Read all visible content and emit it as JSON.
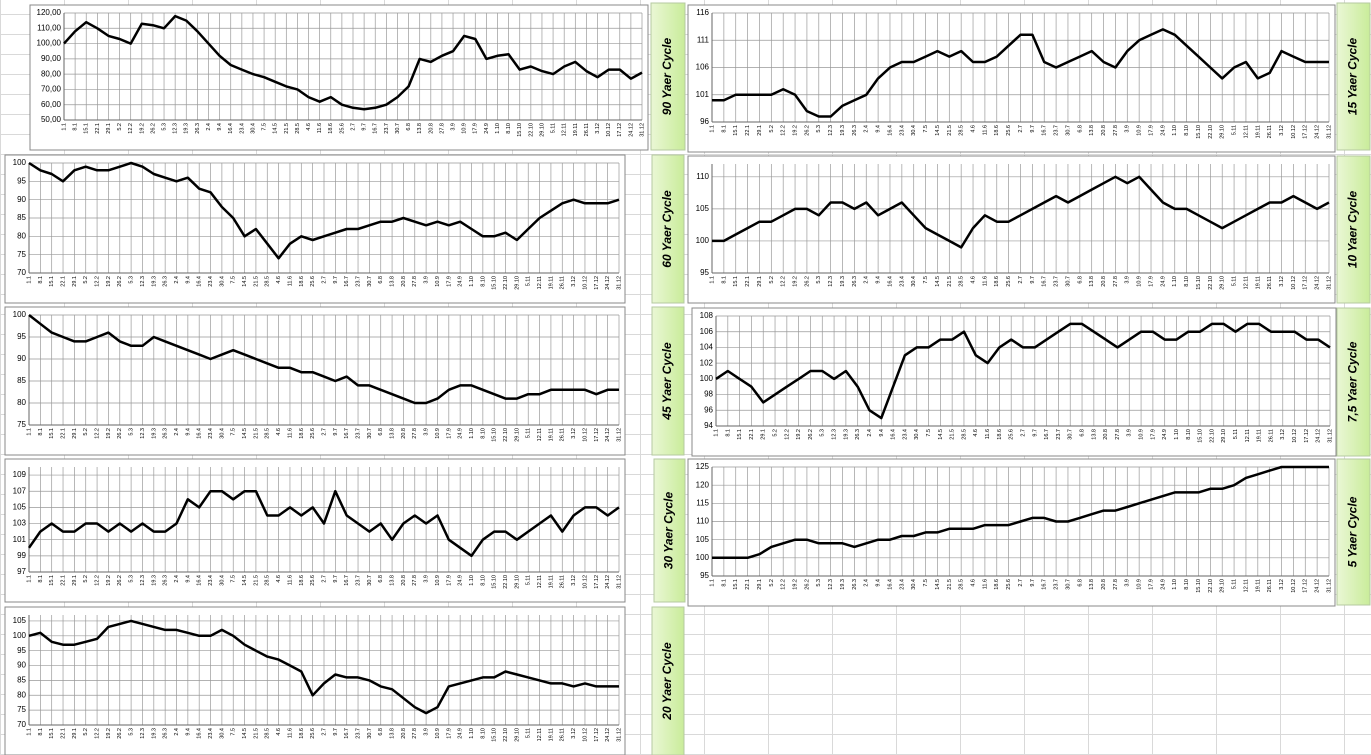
{
  "chart_data": [
    {
      "type": "line",
      "title": "90 Yaer Cycle",
      "color": "#000000",
      "grid": true,
      "ylim": [
        50,
        120
      ],
      "yticks": [
        {
          "value": 50,
          "label": "50,00"
        },
        {
          "value": 60,
          "label": "60,00"
        },
        {
          "value": 70,
          "label": "70,00"
        },
        {
          "value": 80,
          "label": "80,00"
        },
        {
          "value": 90,
          "label": "90,00"
        },
        {
          "value": 100,
          "label": "100,00"
        },
        {
          "value": 110,
          "label": "110,00"
        },
        {
          "value": 120,
          "label": "120,00"
        }
      ],
      "categories": [
        "1.1",
        "8.1",
        "15.1",
        "22.1",
        "29.1",
        "5.2",
        "12.2",
        "19.2",
        "26.2",
        "5.3",
        "12.3",
        "19.3",
        "26.3",
        "2.4",
        "9.4",
        "16.4",
        "23.4",
        "30.4",
        "7.5",
        "14.5",
        "21.5",
        "28.5",
        "4.6",
        "11.6",
        "18.6",
        "25.6",
        "2.7",
        "9.7",
        "16.7",
        "23.7",
        "30.7",
        "6.8",
        "13.8",
        "20.8",
        "27.8",
        "3.9",
        "10.9",
        "17.9",
        "24.9",
        "1.10",
        "8.10",
        "15.10",
        "22.10",
        "29.10",
        "5.11",
        "12.11",
        "19.11",
        "26.11",
        "3.12",
        "10.12",
        "17.12",
        "24.12",
        "31.12"
      ],
      "values": [
        100,
        108,
        114,
        110,
        105,
        103,
        100,
        113,
        112,
        110,
        118,
        115,
        108,
        100,
        92,
        86,
        83,
        80,
        78,
        75,
        72,
        70,
        65,
        62,
        65,
        60,
        58,
        57,
        58,
        60,
        65,
        72,
        90,
        88,
        92,
        95,
        105,
        103,
        90,
        92,
        93,
        83,
        85,
        82,
        80,
        85,
        88,
        82,
        78,
        83,
        83,
        77,
        81
      ]
    },
    {
      "type": "line",
      "title": "60 Yaer Cycle",
      "color": "#000000",
      "grid": true,
      "ylim": [
        70,
        100
      ],
      "yticks": [
        70,
        75,
        80,
        85,
        90,
        95,
        100
      ],
      "categories": [
        "1.1",
        "8.1",
        "15.1",
        "22.1",
        "29.1",
        "5.2",
        "12.2",
        "19.2",
        "26.2",
        "5.3",
        "12.3",
        "19.3",
        "26.3",
        "2.4",
        "9.4",
        "16.4",
        "23.4",
        "30.4",
        "7.5",
        "14.5",
        "21.5",
        "28.5",
        "4.6",
        "11.6",
        "18.6",
        "25.6",
        "2.7",
        "9.7",
        "16.7",
        "23.7",
        "30.7",
        "6.8",
        "13.8",
        "20.8",
        "27.8",
        "3.9",
        "10.9",
        "17.9",
        "24.9",
        "1.10",
        "8.10",
        "15.10",
        "22.10",
        "29.10",
        "5.11",
        "12.11",
        "19.11",
        "26.11",
        "3.12",
        "10.12",
        "17.12",
        "24.12",
        "31.12"
      ],
      "values": [
        100,
        98,
        97,
        95,
        98,
        99,
        98,
        98,
        99,
        100,
        99,
        97,
        96,
        95,
        96,
        93,
        92,
        88,
        85,
        80,
        82,
        78,
        74,
        78,
        80,
        79,
        80,
        81,
        82,
        82,
        83,
        84,
        84,
        85,
        84,
        83,
        84,
        83,
        84,
        82,
        80,
        80,
        81,
        79,
        82,
        85,
        87,
        89,
        90,
        89,
        89,
        89,
        90
      ]
    },
    {
      "type": "line",
      "title": "45 Yaer Cycle",
      "color": "#000000",
      "grid": true,
      "ylim": [
        75,
        100
      ],
      "yticks": [
        75,
        80,
        85,
        90,
        95,
        100
      ],
      "categories": [
        "1.1",
        "8.1",
        "15.1",
        "22.1",
        "29.1",
        "5.2",
        "12.2",
        "19.2",
        "26.2",
        "5.3",
        "12.3",
        "19.3",
        "26.3",
        "2.4",
        "9.4",
        "16.4",
        "23.4",
        "30.4",
        "7.5",
        "14.5",
        "21.5",
        "28.5",
        "4.6",
        "11.6",
        "18.6",
        "25.6",
        "2.7",
        "9.7",
        "16.7",
        "23.7",
        "30.7",
        "6.8",
        "13.8",
        "20.8",
        "27.8",
        "3.9",
        "10.9",
        "17.9",
        "24.9",
        "1.10",
        "8.10",
        "15.10",
        "22.10",
        "29.10",
        "5.11",
        "12.11",
        "19.11",
        "26.11",
        "3.12",
        "10.12",
        "17.12",
        "24.12",
        "31.12"
      ],
      "values": [
        100,
        98,
        96,
        95,
        94,
        94,
        95,
        96,
        94,
        93,
        93,
        95,
        94,
        93,
        92,
        91,
        90,
        91,
        92,
        91,
        90,
        89,
        88,
        88,
        87,
        87,
        86,
        85,
        86,
        84,
        84,
        83,
        82,
        81,
        80,
        80,
        81,
        83,
        84,
        84,
        83,
        82,
        81,
        81,
        82,
        82,
        83,
        83,
        83,
        83,
        82,
        83,
        83
      ]
    },
    {
      "type": "line",
      "title": "30 Yaer Cycle",
      "color": "#000000",
      "grid": true,
      "ylim": [
        97,
        110
      ],
      "yticks": [
        97,
        99,
        101,
        103,
        105,
        107,
        109
      ],
      "categories": [
        "1.1",
        "8.1",
        "15.1",
        "22.1",
        "29.1",
        "5.2",
        "12.2",
        "19.2",
        "26.2",
        "5.3",
        "12.3",
        "19.3",
        "26.3",
        "2.4",
        "9.4",
        "16.4",
        "23.4",
        "30.4",
        "7.5",
        "14.5",
        "21.5",
        "28.5",
        "4.6",
        "11.6",
        "18.6",
        "25.6",
        "2.7",
        "9.7",
        "16.7",
        "23.7",
        "30.7",
        "6.8",
        "13.8",
        "20.8",
        "27.8",
        "3.9",
        "10.9",
        "17.9",
        "24.9",
        "1.10",
        "8.10",
        "15.10",
        "22.10",
        "29.10",
        "5.11",
        "12.11",
        "19.11",
        "26.11",
        "3.12",
        "10.12",
        "17.12",
        "24.12",
        "31.12"
      ],
      "values": [
        100,
        102,
        103,
        102,
        102,
        103,
        103,
        102,
        103,
        102,
        103,
        102,
        102,
        103,
        106,
        105,
        107,
        107,
        106,
        107,
        107,
        104,
        104,
        105,
        104,
        105,
        103,
        107,
        104,
        103,
        102,
        103,
        101,
        103,
        104,
        103,
        104,
        101,
        100,
        99,
        101,
        102,
        102,
        101,
        102,
        103,
        104,
        102,
        104,
        105,
        105,
        104,
        105
      ]
    },
    {
      "type": "line",
      "title": "20 Yaer Cycle",
      "color": "#000000",
      "grid": true,
      "ylim": [
        70,
        107
      ],
      "yticks": [
        70,
        75,
        80,
        85,
        90,
        95,
        100,
        105
      ],
      "categories": [
        "1.1",
        "8.1",
        "15.1",
        "22.1",
        "29.1",
        "5.2",
        "12.2",
        "19.2",
        "26.2",
        "5.3",
        "12.3",
        "19.3",
        "26.3",
        "2.4",
        "9.4",
        "16.4",
        "23.4",
        "30.4",
        "7.5",
        "14.5",
        "21.5",
        "28.5",
        "4.6",
        "11.6",
        "18.6",
        "25.6",
        "2.7",
        "9.7",
        "16.7",
        "23.7",
        "30.7",
        "6.8",
        "13.8",
        "20.8",
        "27.8",
        "3.9",
        "10.9",
        "17.9",
        "24.9",
        "1.10",
        "8.10",
        "15.10",
        "22.10",
        "29.10",
        "5.11",
        "12.11",
        "19.11",
        "26.11",
        "3.12",
        "10.12",
        "17.12",
        "24.12",
        "31.12"
      ],
      "values": [
        100,
        101,
        98,
        97,
        97,
        98,
        99,
        103,
        104,
        105,
        104,
        103,
        102,
        102,
        101,
        100,
        100,
        102,
        100,
        97,
        95,
        93,
        92,
        90,
        88,
        80,
        84,
        87,
        86,
        86,
        85,
        83,
        82,
        79,
        76,
        74,
        76,
        83,
        84,
        85,
        86,
        86,
        88,
        87,
        86,
        85,
        84,
        84,
        83,
        84,
        83,
        83,
        83
      ]
    },
    {
      "type": "line",
      "title": "15 Yaer Cycle",
      "color": "#000000",
      "grid": true,
      "ylim": [
        96,
        116
      ],
      "yticks": [
        96,
        101,
        106,
        111,
        116
      ],
      "categories": [
        "1.1",
        "8.1",
        "15.1",
        "22.1",
        "29.1",
        "5.2",
        "12.2",
        "19.2",
        "26.2",
        "5.3",
        "12.3",
        "19.3",
        "26.3",
        "2.4",
        "9.4",
        "16.4",
        "23.4",
        "30.4",
        "7.5",
        "14.5",
        "21.5",
        "28.5",
        "4.6",
        "11.6",
        "18.6",
        "25.6",
        "2.7",
        "9.7",
        "16.7",
        "23.7",
        "30.7",
        "6.8",
        "13.8",
        "20.8",
        "27.8",
        "3.9",
        "10.9",
        "17.9",
        "24.9",
        "1.10",
        "8.10",
        "15.10",
        "22.10",
        "29.10",
        "5.11",
        "12.11",
        "19.11",
        "26.11",
        "3.12",
        "10.12",
        "17.12",
        "24.12",
        "31.12"
      ],
      "values": [
        100,
        100,
        101,
        101,
        101,
        101,
        102,
        101,
        98,
        97,
        97,
        99,
        100,
        101,
        104,
        106,
        107,
        107,
        108,
        109,
        108,
        109,
        107,
        107,
        108,
        110,
        112,
        112,
        107,
        106,
        107,
        108,
        109,
        107,
        106,
        109,
        111,
        112,
        113,
        112,
        110,
        108,
        106,
        104,
        106,
        107,
        104,
        105,
        109,
        108,
        107,
        107,
        107
      ]
    },
    {
      "type": "line",
      "title": "10 Yaer Cycle",
      "color": "#000000",
      "grid": true,
      "ylim": [
        95,
        112
      ],
      "yticks": [
        95,
        100,
        105,
        110
      ],
      "categories": [
        "1.1",
        "8.1",
        "15.1",
        "22.1",
        "29.1",
        "5.2",
        "12.2",
        "19.2",
        "26.2",
        "5.3",
        "12.3",
        "19.3",
        "26.3",
        "2.4",
        "9.4",
        "16.4",
        "23.4",
        "30.4",
        "7.5",
        "14.5",
        "21.5",
        "28.5",
        "4.6",
        "11.6",
        "18.6",
        "25.6",
        "2.7",
        "9.7",
        "16.7",
        "23.7",
        "30.7",
        "6.8",
        "13.8",
        "20.8",
        "27.8",
        "3.9",
        "10.9",
        "17.9",
        "24.9",
        "1.10",
        "8.10",
        "15.10",
        "22.10",
        "29.10",
        "5.11",
        "12.11",
        "19.11",
        "26.11",
        "3.12",
        "10.12",
        "17.12",
        "24.12",
        "31.12"
      ],
      "values": [
        100,
        100,
        101,
        102,
        103,
        103,
        104,
        105,
        105,
        104,
        106,
        106,
        105,
        106,
        104,
        105,
        106,
        104,
        102,
        101,
        100,
        99,
        102,
        104,
        103,
        103,
        104,
        105,
        106,
        107,
        106,
        107,
        108,
        109,
        110,
        109,
        110,
        108,
        106,
        105,
        105,
        104,
        103,
        102,
        103,
        104,
        105,
        106,
        106,
        107,
        106,
        105,
        106
      ]
    },
    {
      "type": "line",
      "title": "7,5 Yaer Cycle",
      "color": "#000000",
      "grid": true,
      "ylim": [
        94,
        108
      ],
      "yticks": [
        94,
        96,
        98,
        100,
        102,
        104,
        106,
        108
      ],
      "categories": [
        "1.1",
        "8.1",
        "15.1",
        "22.1",
        "29.1",
        "5.2",
        "12.2",
        "19.2",
        "26.2",
        "5.3",
        "12.3",
        "19.3",
        "26.3",
        "2.4",
        "9.4",
        "16.4",
        "23.4",
        "30.4",
        "7.5",
        "14.5",
        "21.5",
        "28.5",
        "4.6",
        "11.6",
        "18.6",
        "25.6",
        "2.7",
        "9.7",
        "16.7",
        "23.7",
        "30.7",
        "6.8",
        "13.8",
        "20.8",
        "27.8",
        "3.9",
        "10.9",
        "17.9",
        "24.9",
        "1.10",
        "8.10",
        "15.10",
        "22.10",
        "29.10",
        "5.11",
        "12.11",
        "19.11",
        "26.11",
        "3.12",
        "10.12",
        "17.12",
        "24.12",
        "31.12"
      ],
      "values": [
        100,
        101,
        100,
        99,
        97,
        98,
        99,
        100,
        101,
        101,
        100,
        101,
        99,
        96,
        95,
        99,
        103,
        104,
        104,
        105,
        105,
        106,
        103,
        102,
        104,
        105,
        104,
        104,
        105,
        106,
        107,
        107,
        106,
        105,
        104,
        105,
        106,
        106,
        105,
        105,
        106,
        106,
        107,
        107,
        106,
        107,
        107,
        106,
        106,
        106,
        105,
        105,
        104
      ]
    },
    {
      "type": "line",
      "title": "5 Yaer Cycle",
      "color": "#000000",
      "grid": true,
      "ylim": [
        95,
        125
      ],
      "yticks": [
        95,
        100,
        105,
        110,
        115,
        120,
        125
      ],
      "categories": [
        "1.1",
        "8.1",
        "15.1",
        "22.1",
        "29.1",
        "5.2",
        "12.2",
        "19.2",
        "26.2",
        "5.3",
        "12.3",
        "19.3",
        "26.3",
        "2.4",
        "9.4",
        "16.4",
        "23.4",
        "30.4",
        "7.5",
        "14.5",
        "21.5",
        "28.5",
        "4.6",
        "11.6",
        "18.6",
        "25.6",
        "2.7",
        "9.7",
        "16.7",
        "23.7",
        "30.7",
        "6.8",
        "13.8",
        "20.8",
        "27.8",
        "3.9",
        "10.9",
        "17.9",
        "24.9",
        "1.10",
        "8.10",
        "15.10",
        "22.10",
        "29.10",
        "5.11",
        "12.11",
        "19.11",
        "26.11",
        "3.12",
        "10.12",
        "17.12",
        "24.12",
        "31.12"
      ],
      "values": [
        100,
        100,
        100,
        100,
        101,
        103,
        104,
        105,
        105,
        104,
        104,
        104,
        103,
        104,
        105,
        105,
        106,
        106,
        107,
        107,
        108,
        108,
        108,
        109,
        109,
        109,
        110,
        111,
        111,
        110,
        110,
        111,
        112,
        113,
        113,
        114,
        115,
        116,
        117,
        118,
        118,
        118,
        119,
        119,
        120,
        122,
        123,
        124,
        125,
        125,
        125,
        125,
        125
      ]
    }
  ]
}
